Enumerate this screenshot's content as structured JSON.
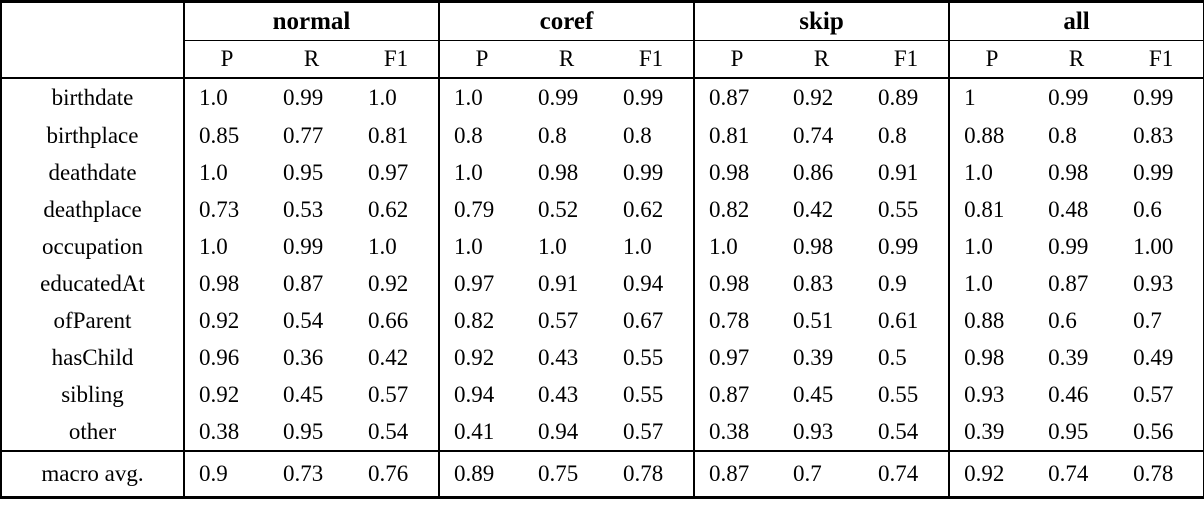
{
  "table": {
    "corner_label": "",
    "groups": [
      {
        "label": "normal"
      },
      {
        "label": "coref"
      },
      {
        "label": "skip"
      },
      {
        "label": "all"
      }
    ],
    "metric_headers": [
      "P",
      "R",
      "F1"
    ],
    "rows": [
      {
        "label": "birthdate",
        "values": [
          "1.0",
          "0.99",
          "1.0",
          "1.0",
          "0.99",
          "0.99",
          "0.87",
          "0.92",
          "0.89",
          "1",
          "0.99",
          "0.99"
        ]
      },
      {
        "label": "birthplace",
        "values": [
          "0.85",
          "0.77",
          "0.81",
          "0.8",
          "0.8",
          "0.8",
          "0.81",
          "0.74",
          "0.8",
          "0.88",
          "0.8",
          "0.83"
        ]
      },
      {
        "label": "deathdate",
        "values": [
          "1.0",
          "0.95",
          "0.97",
          "1.0",
          "0.98",
          "0.99",
          "0.98",
          "0.86",
          "0.91",
          "1.0",
          "0.98",
          "0.99"
        ]
      },
      {
        "label": "deathplace",
        "values": [
          "0.73",
          "0.53",
          "0.62",
          "0.79",
          "0.52",
          "0.62",
          "0.82",
          "0.42",
          "0.55",
          "0.81",
          "0.48",
          "0.6"
        ]
      },
      {
        "label": "occupation",
        "values": [
          "1.0",
          "0.99",
          "1.0",
          "1.0",
          "1.0",
          "1.0",
          "1.0",
          "0.98",
          "0.99",
          "1.0",
          "0.99",
          "1.00"
        ]
      },
      {
        "label": "educatedAt",
        "values": [
          "0.98",
          "0.87",
          "0.92",
          "0.97",
          "0.91",
          "0.94",
          "0.98",
          "0.83",
          "0.9",
          "1.0",
          "0.87",
          "0.93"
        ]
      },
      {
        "label": "ofParent",
        "values": [
          "0.92",
          "0.54",
          "0.66",
          "0.82",
          "0.57",
          "0.67",
          "0.78",
          "0.51",
          "0.61",
          "0.88",
          "0.6",
          "0.7"
        ]
      },
      {
        "label": "hasChild",
        "values": [
          "0.96",
          "0.36",
          "0.42",
          "0.92",
          "0.43",
          "0.55",
          "0.97",
          "0.39",
          "0.5",
          "0.98",
          "0.39",
          "0.49"
        ]
      },
      {
        "label": "sibling",
        "values": [
          "0.92",
          "0.45",
          "0.57",
          "0.94",
          "0.43",
          "0.55",
          "0.87",
          "0.45",
          "0.55",
          "0.93",
          "0.46",
          "0.57"
        ]
      },
      {
        "label": "other",
        "values": [
          "0.38",
          "0.95",
          "0.54",
          "0.41",
          "0.94",
          "0.57",
          "0.38",
          "0.93",
          "0.54",
          "0.39",
          "0.95",
          "0.56"
        ]
      }
    ],
    "footer": {
      "label": "macro avg.",
      "values": [
        "0.9",
        "0.73",
        "0.76",
        "0.89",
        "0.75",
        "0.78",
        "0.87",
        "0.7",
        "0.74",
        "0.92",
        "0.74",
        "0.78"
      ]
    }
  },
  "colors": {
    "background": "#ffffff",
    "text": "#000000",
    "border": "#000000"
  }
}
